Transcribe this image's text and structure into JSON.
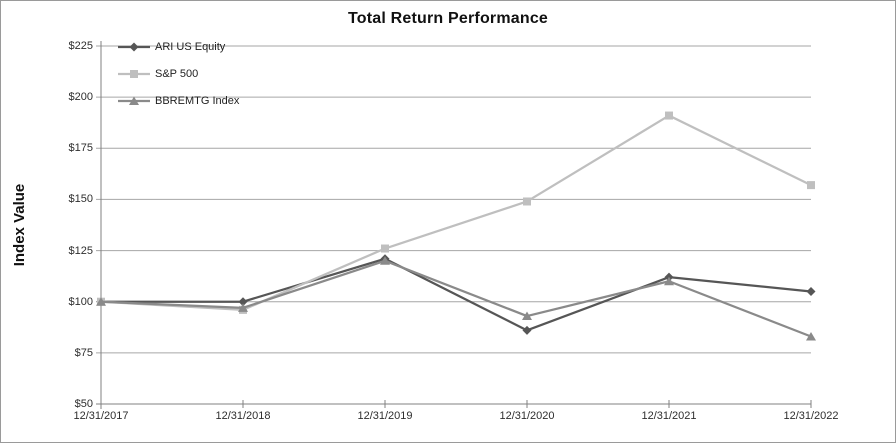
{
  "chart_data": {
    "type": "line",
    "title": "Total Return Performance",
    "ylabel": "Index Value",
    "xlabel": "",
    "categories": [
      "12/31/2017",
      "12/31/2018",
      "12/31/2019",
      "12/31/2020",
      "12/31/2021",
      "12/31/2022"
    ],
    "series": [
      {
        "name": "ARI US Equity",
        "marker": "diamond",
        "color": "#565656",
        "values": [
          100,
          100,
          121,
          86,
          112,
          105
        ]
      },
      {
        "name": "S&P 500",
        "marker": "square",
        "color": "#bfbfbf",
        "values": [
          100,
          96,
          126,
          149,
          191,
          157
        ]
      },
      {
        "name": "BBREMTG Index",
        "marker": "triangle",
        "color": "#8a8a8a",
        "values": [
          100,
          97,
          120,
          93,
          110,
          83
        ]
      }
    ],
    "ylim": [
      50,
      225
    ],
    "ytick_step": 25,
    "ytick_labels": [
      "$50",
      "$75",
      "$100",
      "$125",
      "$150",
      "$175",
      "$200",
      "$225"
    ],
    "grid": "horizontal",
    "legend_position": "top-left-inside",
    "gridline_color": "#a6a6a6",
    "axis_color": "#808080"
  }
}
